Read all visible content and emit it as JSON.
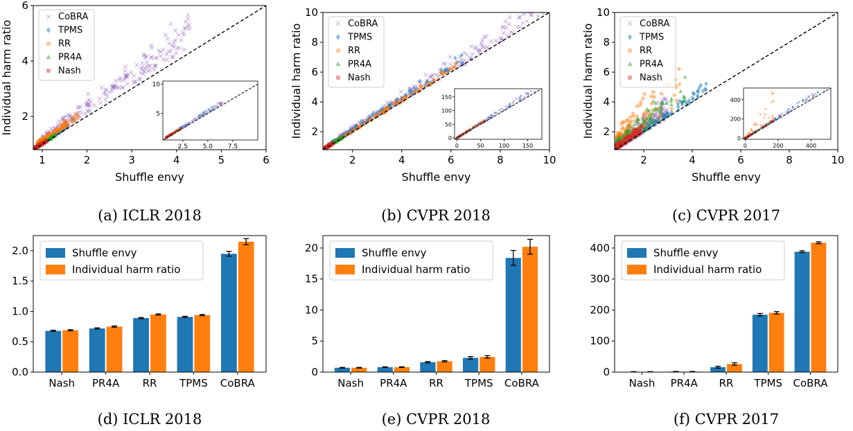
{
  "colors": {
    "CoBRA": "#9467bd",
    "TPMS": "#1f77b4",
    "RR": "#ff7f0e",
    "PR4A": "#2ca02c",
    "Nash": "#d62728",
    "shuffle_bar": "#1f77b4",
    "harm_bar": "#ff7f0e"
  },
  "chart_data": [
    {
      "id": "a",
      "type": "scatter",
      "caption": "(a) ICLR 2018",
      "xlabel": "Shuffle envy",
      "ylabel": "Individual harm ratio",
      "xlim": [
        0.8,
        6
      ],
      "ylim": [
        0.8,
        6
      ],
      "xticks": [
        1,
        2,
        3,
        4,
        5,
        6
      ],
      "yticks": [
        2,
        4,
        6
      ],
      "diagonal": true,
      "legend_position": "top-left",
      "legend": [
        "CoBRA",
        "TPMS",
        "RR",
        "PR4A",
        "Nash"
      ],
      "series_clusters": [
        {
          "name": "Nash",
          "x_range": [
            0.85,
            1.1
          ],
          "y_range_ratio": [
            1.0,
            1.05
          ]
        },
        {
          "name": "PR4A",
          "x_range": [
            0.85,
            1.3
          ],
          "y_range_ratio": [
            1.0,
            1.08
          ]
        },
        {
          "name": "RR",
          "x_range": [
            0.9,
            1.8
          ],
          "y_range_ratio": [
            1.05,
            1.25
          ]
        },
        {
          "name": "TPMS",
          "x_range": [
            0.9,
            1.6
          ],
          "y_range_ratio": [
            1.02,
            1.12
          ]
        },
        {
          "name": "CoBRA",
          "x_range": [
            1.0,
            4.3
          ],
          "y_range_ratio": [
            1.05,
            1.4
          ]
        }
      ],
      "inset": {
        "xlim": [
          0.5,
          10
        ],
        "ylim": [
          0.5,
          10.5
        ],
        "xticks": [
          2.5,
          5.0,
          7.5
        ],
        "yticks": [
          5,
          10
        ],
        "xtick_labels": [
          "2.5",
          "5.0",
          "7.5"
        ],
        "ytick_labels": [
          "5",
          "10"
        ],
        "max_x": 6.5
      }
    },
    {
      "id": "b",
      "type": "scatter",
      "caption": "(b) CVPR 2018",
      "xlabel": "Shuffle envy",
      "ylabel": "Individual harm ratio",
      "xlim": [
        0.8,
        10
      ],
      "ylim": [
        0.8,
        10
      ],
      "xticks": [
        2,
        4,
        6,
        8,
        10
      ],
      "yticks": [
        2,
        4,
        6,
        8,
        10
      ],
      "diagonal": true,
      "legend_position": "top-left",
      "legend": [
        "CoBRA",
        "TPMS",
        "RR",
        "PR4A",
        "Nash"
      ],
      "series_clusters": [
        {
          "name": "Nash",
          "x_range": [
            0.85,
            1.2
          ],
          "y_range_ratio": [
            1.0,
            1.05
          ]
        },
        {
          "name": "PR4A",
          "x_range": [
            0.85,
            1.6
          ],
          "y_range_ratio": [
            1.0,
            1.1
          ]
        },
        {
          "name": "RR",
          "x_range": [
            0.9,
            6.2
          ],
          "y_range_ratio": [
            1.0,
            1.08
          ]
        },
        {
          "name": "TPMS",
          "x_range": [
            1.0,
            6.5
          ],
          "y_range_ratio": [
            1.02,
            1.15
          ]
        },
        {
          "name": "CoBRA",
          "x_range": [
            1.5,
            9.8
          ],
          "y_range_ratio": [
            1.0,
            1.2
          ]
        }
      ],
      "inset": {
        "xlim": [
          -5,
          180
        ],
        "ylim": [
          -5,
          180
        ],
        "xticks": [
          0,
          50,
          100,
          150
        ],
        "yticks": [
          0,
          50,
          100,
          150
        ],
        "xtick_labels": [
          "0",
          "50",
          "100",
          "150"
        ],
        "ytick_labels": [
          "0",
          "50",
          "100",
          "150"
        ],
        "max_x": 170
      }
    },
    {
      "id": "c",
      "type": "scatter",
      "caption": "(c) CVPR 2017",
      "xlabel": "Shuffle envy",
      "ylabel": "Individual harm ratio",
      "xlim": [
        0.8,
        10
      ],
      "ylim": [
        0.8,
        10
      ],
      "xticks": [
        2,
        4,
        6,
        8,
        10
      ],
      "yticks": [
        2,
        4,
        6,
        8,
        10
      ],
      "diagonal": true,
      "legend_position": "top-left",
      "legend": [
        "CoBRA",
        "TPMS",
        "RR",
        "PR4A",
        "Nash"
      ],
      "series_clusters": [
        {
          "name": "Nash",
          "x_range": [
            0.85,
            1.9
          ],
          "y_range_ratio": [
            1.0,
            1.35
          ]
        },
        {
          "name": "PR4A",
          "x_range": [
            0.9,
            3.8
          ],
          "y_range_ratio": [
            1.0,
            1.8
          ]
        },
        {
          "name": "RR",
          "x_range": [
            0.9,
            3.5
          ],
          "y_range_ratio": [
            1.1,
            2.5
          ]
        },
        {
          "name": "TPMS",
          "x_range": [
            1.0,
            4.7
          ],
          "y_range_ratio": [
            1.0,
            1.2
          ]
        },
        {
          "name": "CoBRA",
          "x_range": [
            1.0,
            3.0
          ],
          "y_range_ratio": [
            1.0,
            1.6
          ]
        }
      ],
      "inset": {
        "xlim": [
          -10,
          520
        ],
        "ylim": [
          -10,
          520
        ],
        "xticks": [
          0,
          200,
          400
        ],
        "yticks": [
          0,
          200,
          400
        ],
        "xtick_labels": [
          "0",
          "200",
          "400"
        ],
        "ytick_labels": [
          "0",
          "200",
          "400"
        ],
        "max_x": 500
      }
    },
    {
      "id": "d",
      "type": "bar",
      "caption": "(d) ICLR 2018",
      "categories": [
        "Nash",
        "PR4A",
        "RR",
        "TPMS",
        "CoBRA"
      ],
      "ylim": [
        0,
        2.25
      ],
      "yticks": [
        0.0,
        0.5,
        1.0,
        1.5,
        2.0
      ],
      "ytick_labels": [
        "0.0",
        "0.5",
        "1.0",
        "1.5",
        "2.0"
      ],
      "legend_position": "top-left",
      "series": [
        {
          "name": "Shuffle envy",
          "values": [
            0.68,
            0.72,
            0.89,
            0.91,
            1.95
          ],
          "errors": [
            0.01,
            0.01,
            0.01,
            0.01,
            0.04
          ]
        },
        {
          "name": "Individual harm ratio",
          "values": [
            0.69,
            0.75,
            0.95,
            0.94,
            2.15
          ],
          "errors": [
            0.01,
            0.01,
            0.01,
            0.01,
            0.05
          ]
        }
      ]
    },
    {
      "id": "e",
      "type": "bar",
      "caption": "(e) CVPR 2018",
      "categories": [
        "Nash",
        "PR4A",
        "RR",
        "TPMS",
        "CoBRA"
      ],
      "ylim": [
        0,
        22
      ],
      "yticks": [
        0,
        5,
        10,
        15,
        20
      ],
      "ytick_labels": [
        "0",
        "5",
        "10",
        "15",
        "20"
      ],
      "legend_position": "top-left",
      "series": [
        {
          "name": "Shuffle envy",
          "values": [
            0.7,
            0.8,
            1.6,
            2.3,
            18.4
          ],
          "errors": [
            0.05,
            0.05,
            0.1,
            0.2,
            1.2
          ]
        },
        {
          "name": "Individual harm ratio",
          "values": [
            0.7,
            0.8,
            1.75,
            2.45,
            20.2
          ],
          "errors": [
            0.05,
            0.05,
            0.1,
            0.2,
            1.2
          ]
        }
      ]
    },
    {
      "id": "f",
      "type": "bar",
      "caption": "(f) CVPR 2017",
      "categories": [
        "Nash",
        "PR4A",
        "RR",
        "TPMS",
        "CoBRA"
      ],
      "ylim": [
        0,
        440
      ],
      "yticks": [
        0,
        100,
        200,
        300,
        400
      ],
      "ytick_labels": [
        "0",
        "100",
        "200",
        "300",
        "400"
      ],
      "legend_position": "top-left",
      "series": [
        {
          "name": "Shuffle envy",
          "values": [
            1,
            1.5,
            16,
            185,
            388
          ],
          "errors": [
            0.5,
            0.5,
            3,
            4,
            3
          ]
        },
        {
          "name": "Individual harm ratio",
          "values": [
            1,
            1.5,
            26,
            191,
            417
          ],
          "errors": [
            0.5,
            0.5,
            4,
            4,
            3
          ]
        }
      ]
    }
  ]
}
